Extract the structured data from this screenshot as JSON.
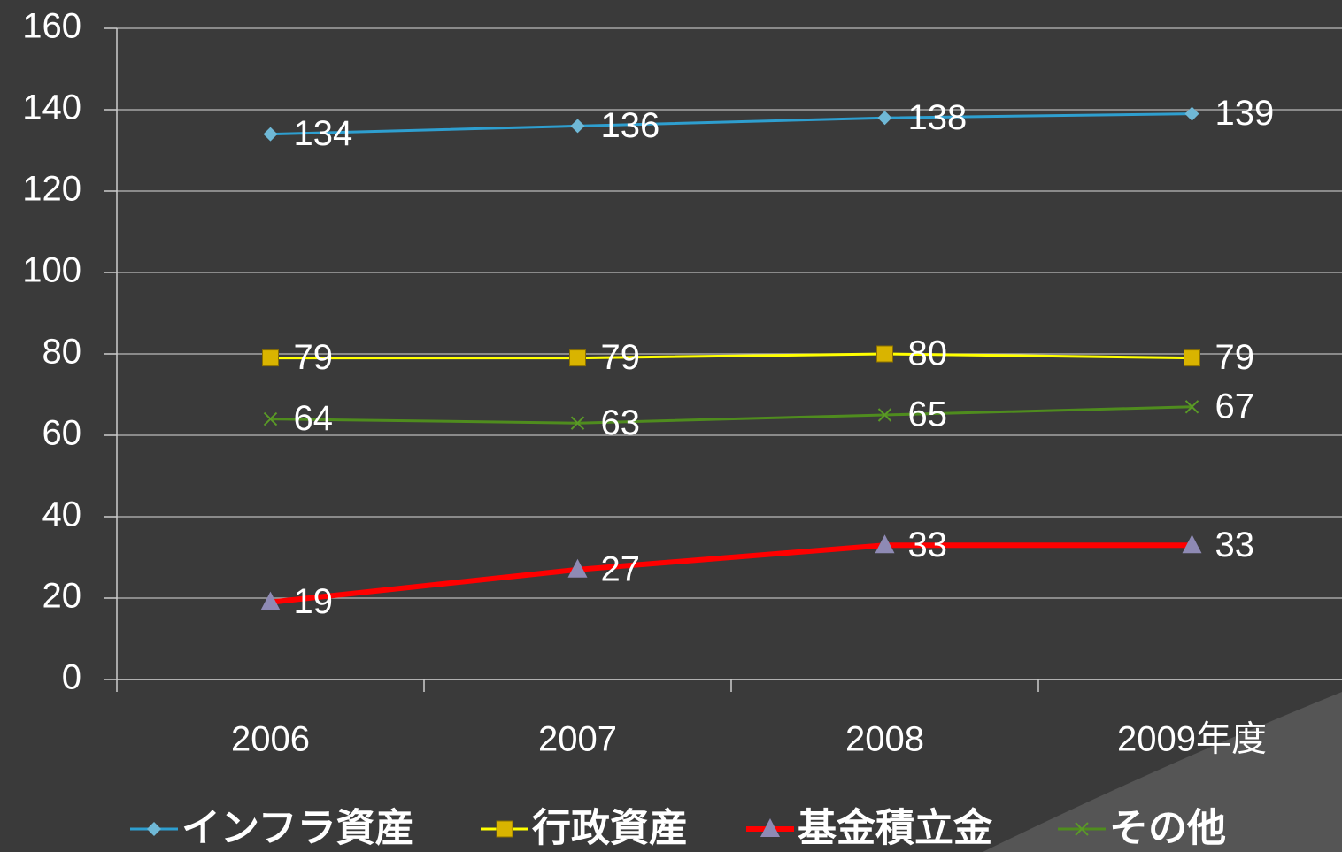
{
  "chart_data": {
    "type": "line",
    "categories": [
      "2006",
      "2007",
      "2008",
      "2009年度"
    ],
    "series": [
      {
        "name": "インフラ資産",
        "color": "#2e9fd0",
        "marker": "diamond",
        "marker_color": "#6fb8d6",
        "values": [
          134,
          136,
          138,
          139
        ]
      },
      {
        "name": "行政資産",
        "color": "#ffff00",
        "marker": "square",
        "marker_color": "#d9b400",
        "values": [
          79,
          79,
          80,
          79
        ]
      },
      {
        "name": "基金積立金",
        "color": "#ff0000",
        "marker": "triangle",
        "marker_color": "#8e8ab4",
        "values": [
          19,
          27,
          33,
          33
        ]
      },
      {
        "name": "その他",
        "color": "#4f8c1e",
        "marker": "x",
        "marker_color": "#5a9a26",
        "values": [
          64,
          63,
          65,
          67
        ]
      }
    ],
    "ylim": [
      0,
      160
    ],
    "yticks": [
      0,
      20,
      40,
      60,
      80,
      100,
      120,
      140,
      160
    ],
    "grid": true,
    "legend": "bottom"
  }
}
